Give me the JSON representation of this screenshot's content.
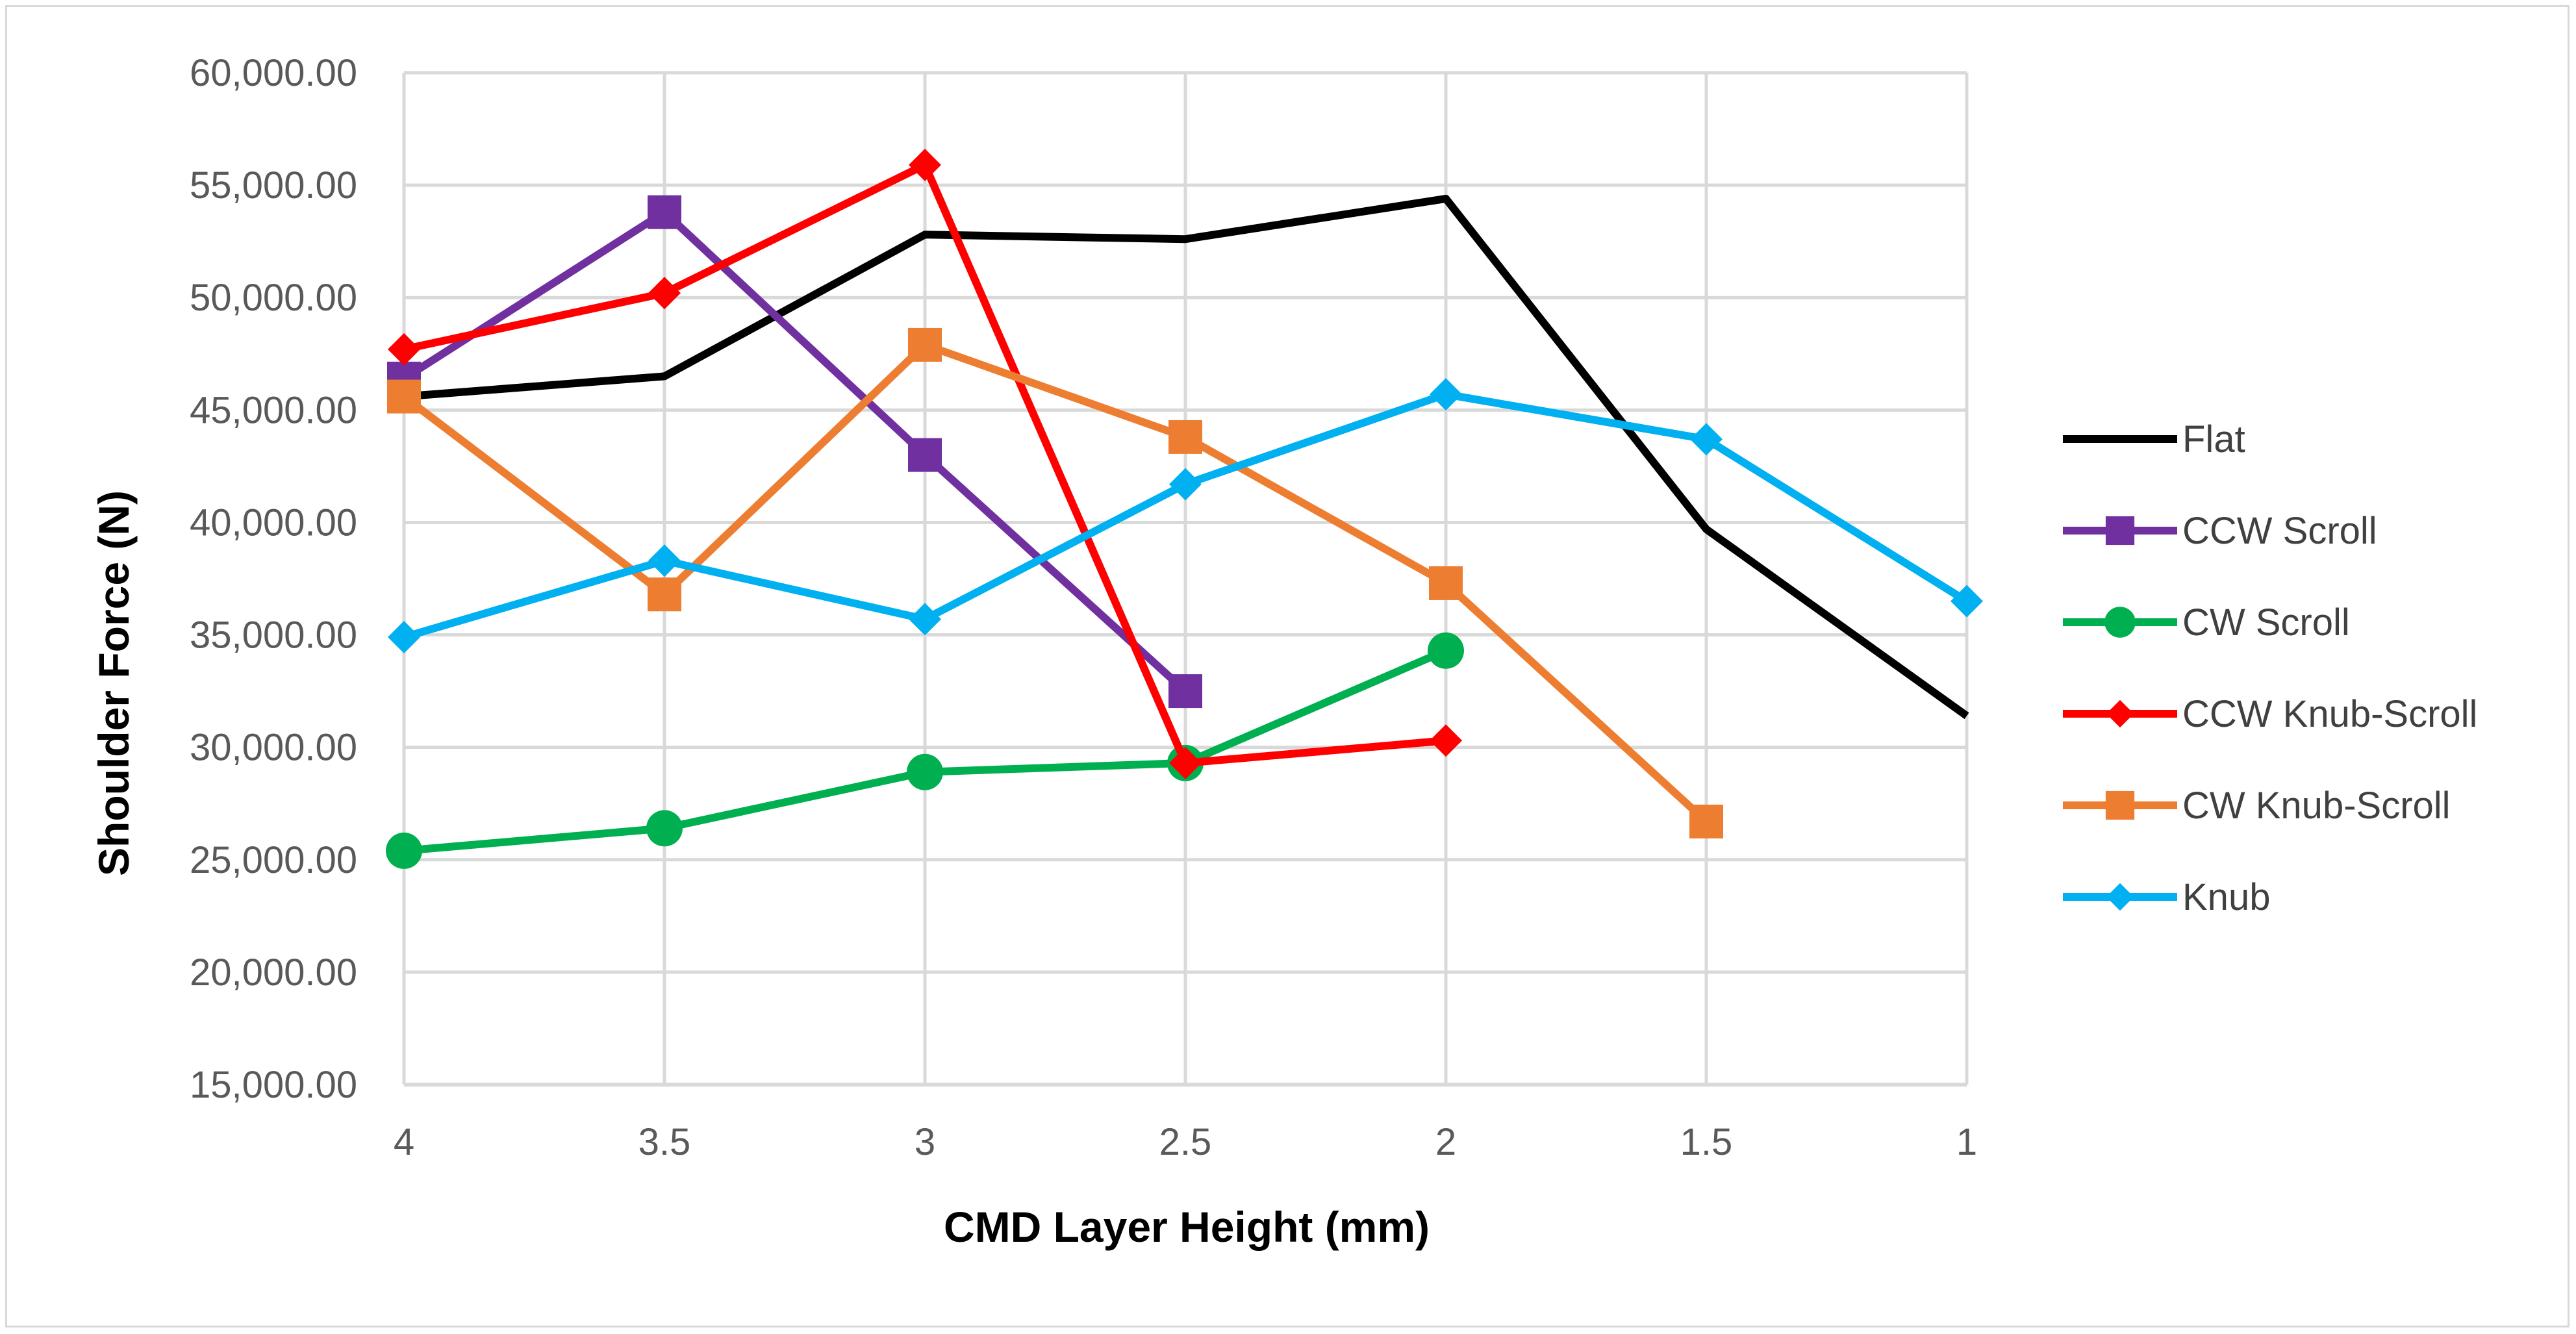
{
  "chart_data": {
    "type": "line",
    "title": "",
    "xlabel": "CMD Layer Height (mm)",
    "ylabel": "Shoulder Force (N)",
    "categories": [
      "4",
      "3.5",
      "3",
      "2.5",
      "2",
      "1.5",
      "1"
    ],
    "ylim": [
      15000,
      60000
    ],
    "yticks": [
      15000,
      20000,
      25000,
      30000,
      35000,
      40000,
      45000,
      50000,
      55000,
      60000
    ],
    "ytick_labels": [
      "15,000.00",
      "20,000.00",
      "25,000.00",
      "30,000.00",
      "35,000.00",
      "40,000.00",
      "45,000.00",
      "50,000.00",
      "55,000.00",
      "60,000.00"
    ],
    "grid": true,
    "legend_position": "right",
    "series": [
      {
        "name": "Flat",
        "color": "#000000",
        "marker": "none",
        "values": [
          45600,
          46500,
          52800,
          52600,
          54400,
          39700,
          31400
        ]
      },
      {
        "name": "CCW Scroll",
        "color": "#7030a0",
        "marker": "square",
        "values": [
          46400,
          53800,
          43000,
          32500,
          null,
          null,
          null
        ]
      },
      {
        "name": "CW Scroll",
        "color": "#00b050",
        "marker": "circle",
        "values": [
          25400,
          26400,
          28900,
          29300,
          34300,
          null,
          null
        ]
      },
      {
        "name": "CCW Knub-Scroll",
        "color": "#ff0000",
        "marker": "diamond",
        "values": [
          47700,
          50200,
          55900,
          29300,
          30300,
          null,
          null
        ]
      },
      {
        "name": "CW Knub-Scroll",
        "color": "#ed7d31",
        "marker": "square",
        "values": [
          45600,
          36800,
          47900,
          43800,
          37300,
          26700,
          null
        ]
      },
      {
        "name": "Knub",
        "color": "#00b0f0",
        "marker": "diamond",
        "values": [
          34900,
          38300,
          35700,
          41700,
          45700,
          43700,
          36500
        ]
      }
    ]
  }
}
